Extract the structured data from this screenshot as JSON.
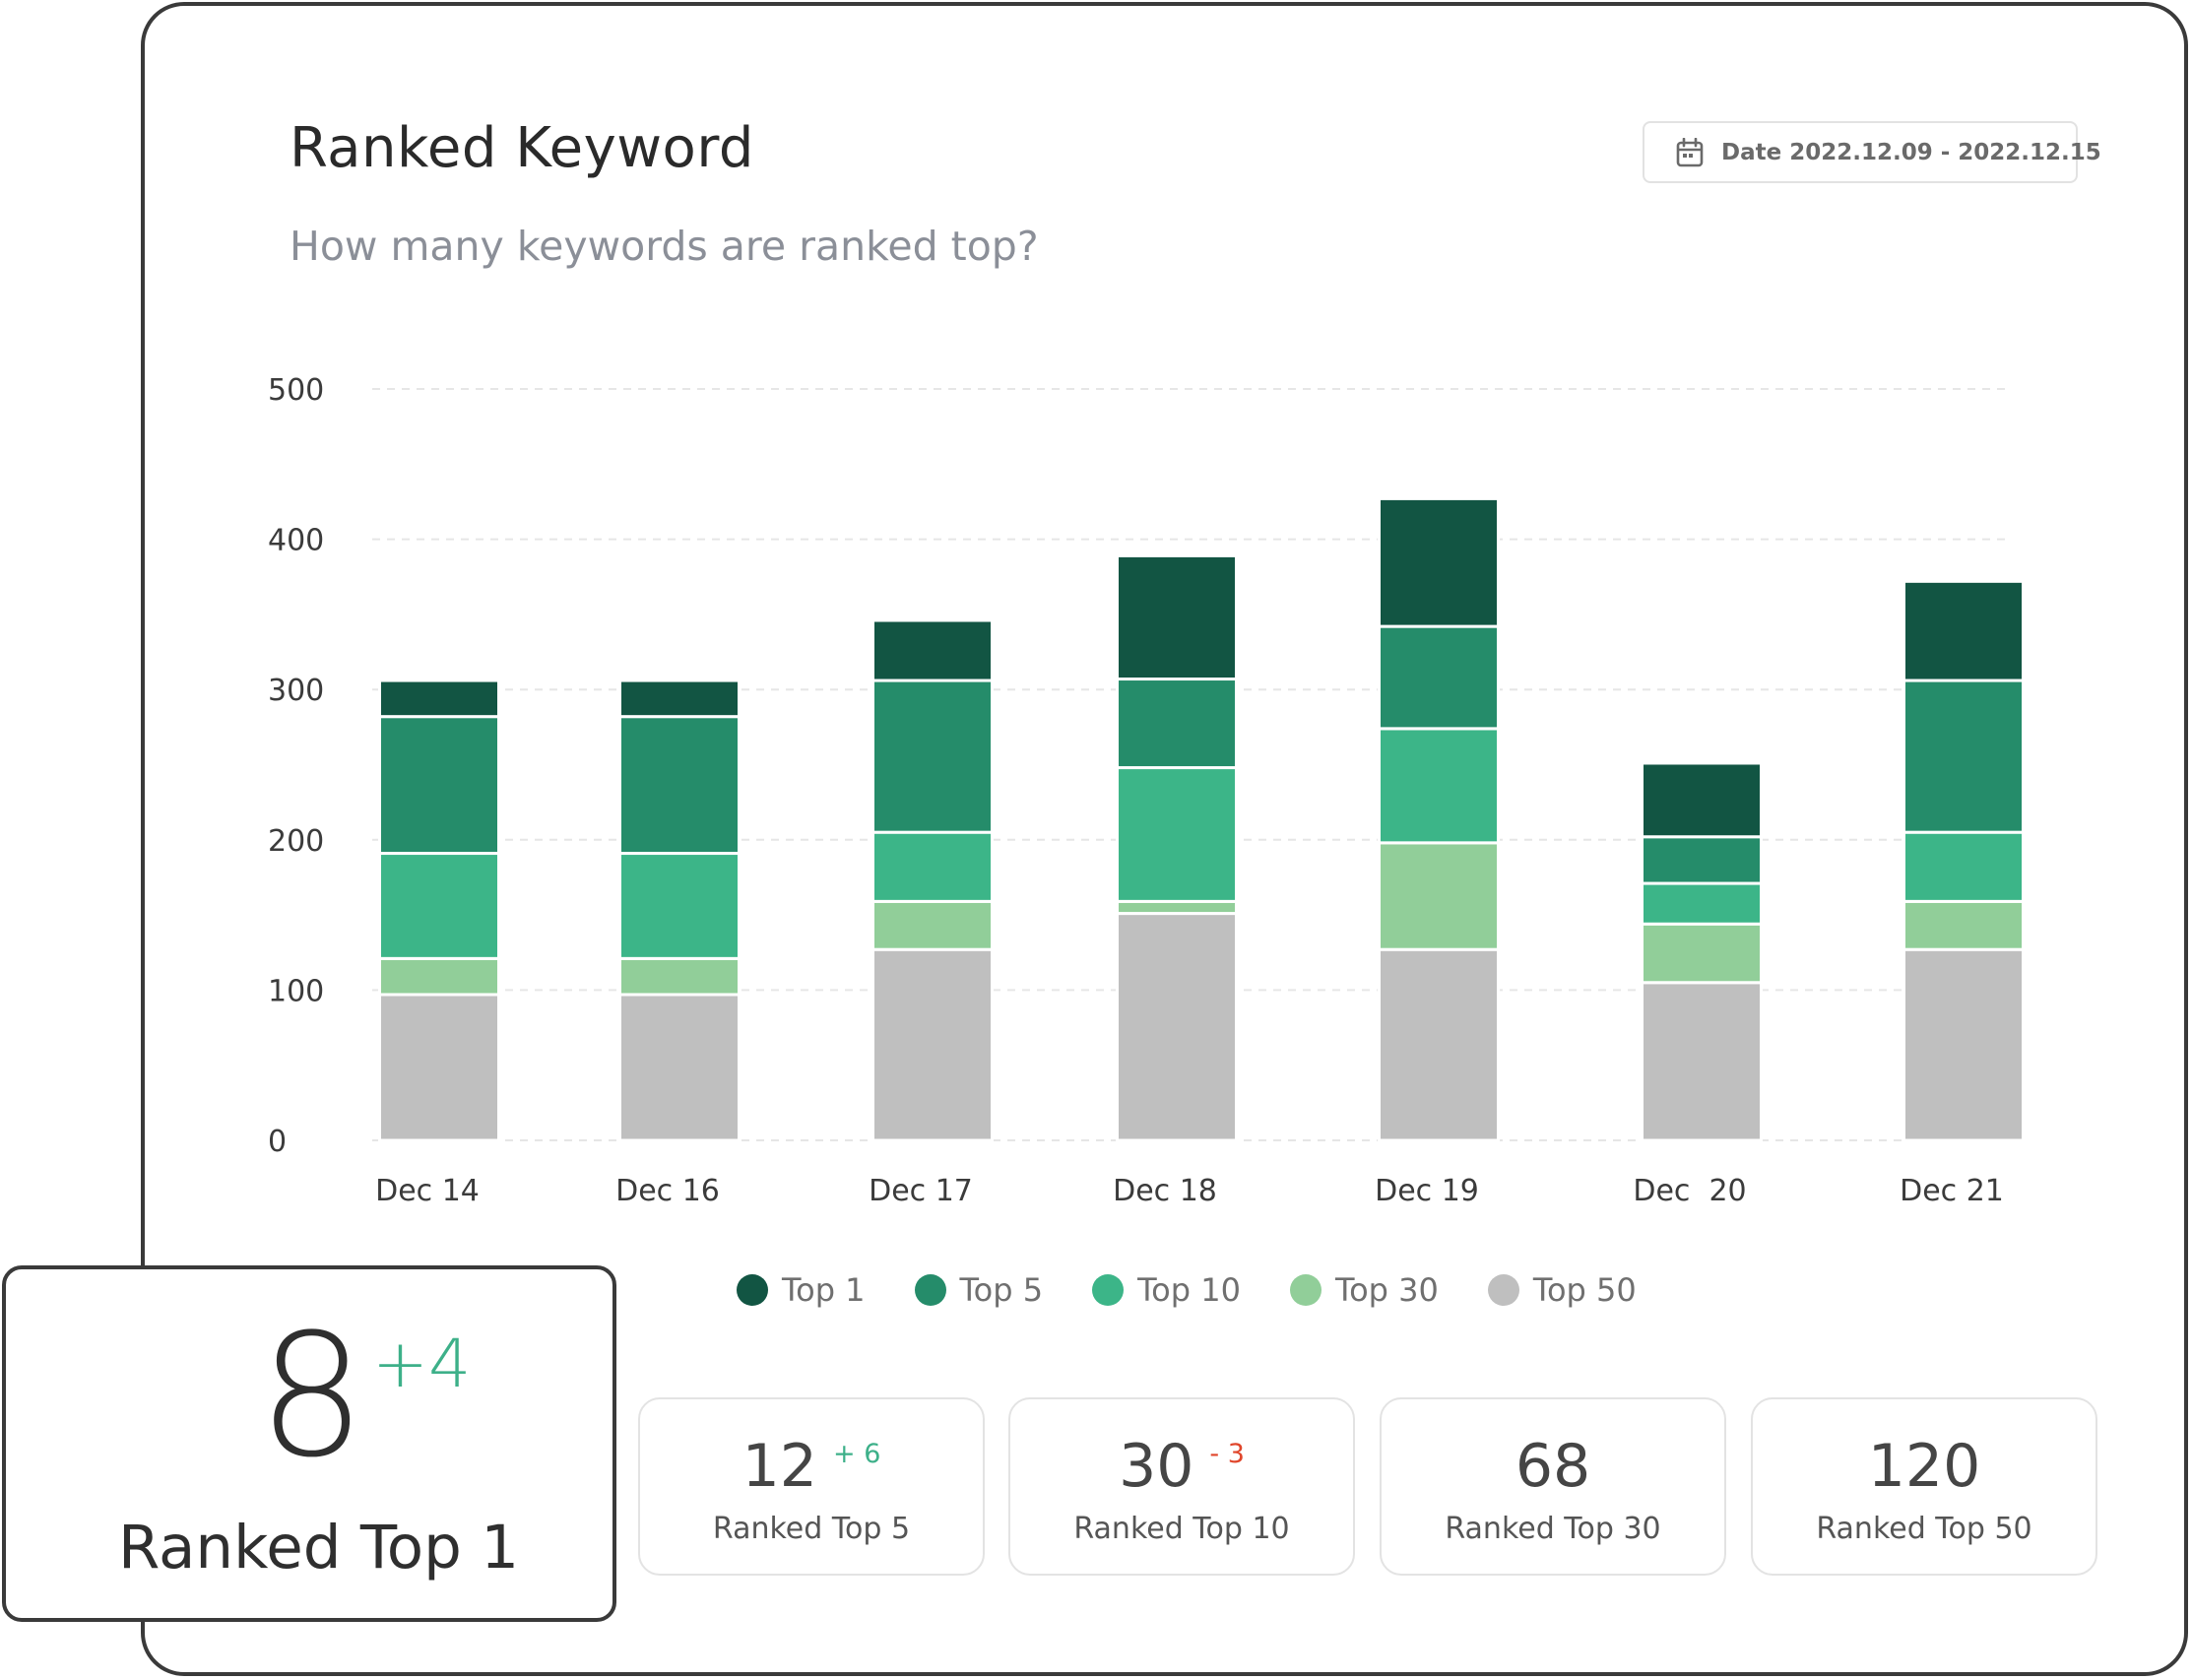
{
  "header": {
    "title": "Ranked Keyword",
    "subtitle": "How many keywords are ranked top?",
    "date_label": "Date 2022.12.09 - 2022.12.15",
    "date_icon": "calendar-icon"
  },
  "colors": {
    "top1": "#125543",
    "top5": "#258c6a",
    "top10": "#3cb588",
    "top30": "#91ce99",
    "top50": "#bfbfbf",
    "positive": "#3db089",
    "negative": "#e0462b"
  },
  "chart_data": {
    "type": "bar",
    "stacked": true,
    "categories": [
      "Dec 14",
      "Dec 16",
      "Dec 17",
      "Dec 18",
      "Dec 19",
      "Dec  20",
      "Dec 21"
    ],
    "series": [
      {
        "name": "Top 50",
        "color": "#bfbfbf",
        "values": [
          97,
          97,
          127,
          151,
          127,
          105,
          127
        ]
      },
      {
        "name": "Top 30",
        "color": "#91ce99",
        "values": [
          24,
          24,
          32,
          8,
          71,
          39,
          32
        ]
      },
      {
        "name": "Top 10",
        "color": "#3cb588",
        "values": [
          70,
          70,
          46,
          89,
          76,
          27,
          46
        ]
      },
      {
        "name": "Top 5",
        "color": "#258c6a",
        "values": [
          91,
          91,
          101,
          59,
          68,
          31,
          101
        ]
      },
      {
        "name": "Top 1",
        "color": "#125543",
        "values": [
          24,
          24,
          40,
          82,
          85,
          49,
          66
        ]
      }
    ],
    "y_ticks": [
      0,
      100,
      200,
      300,
      400,
      500
    ],
    "ylim": [
      0,
      500
    ],
    "grid": true,
    "legend_position": "bottom"
  },
  "legend": [
    {
      "label": "Top 1",
      "color": "#125543"
    },
    {
      "label": "Top 5",
      "color": "#258c6a"
    },
    {
      "label": "Top 10",
      "color": "#3cb588"
    },
    {
      "label": "Top 30",
      "color": "#91ce99"
    },
    {
      "label": "Top 50",
      "color": "#bfbfbf"
    }
  ],
  "stats": [
    {
      "value": "12",
      "delta": "+ 6",
      "delta_type": "positive",
      "label": "Ranked Top 5"
    },
    {
      "value": "30",
      "delta": "- 3",
      "delta_type": "negative",
      "label": "Ranked Top 10"
    },
    {
      "value": "68",
      "delta": "",
      "delta_type": "none",
      "label": "Ranked Top 30"
    },
    {
      "value": "120",
      "delta": "",
      "delta_type": "none",
      "label": "Ranked Top 50"
    }
  ],
  "highlight": {
    "value": "8",
    "delta": "+4",
    "label": "Ranked Top 1"
  }
}
